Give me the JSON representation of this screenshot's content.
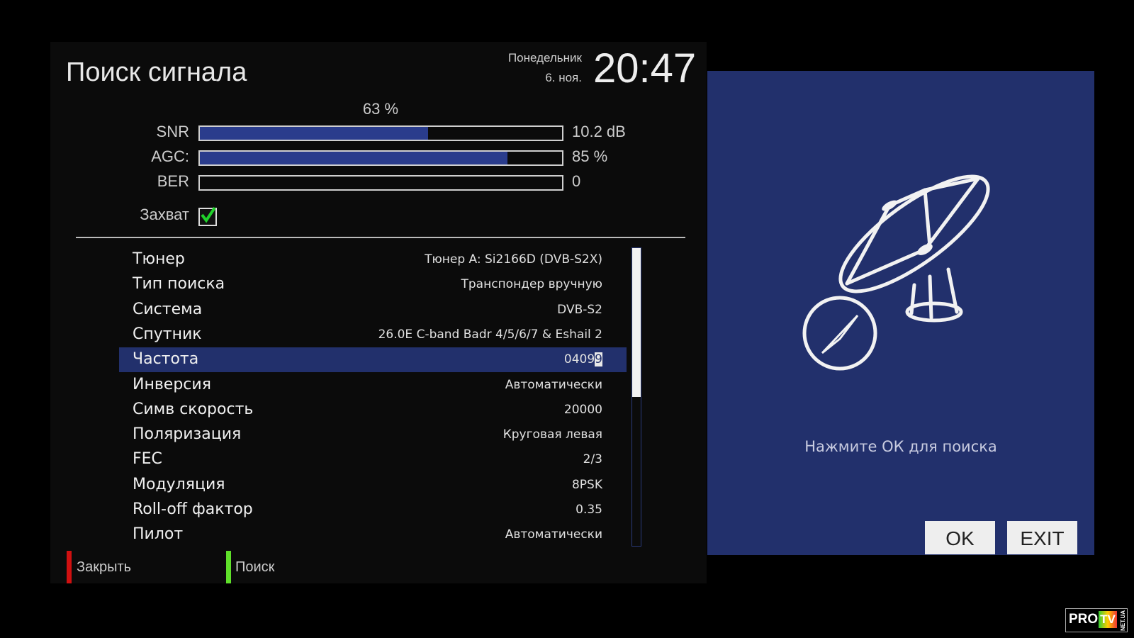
{
  "header": {
    "title": "Поиск сигнала",
    "day": "Понедельник",
    "date": "6. ноя.",
    "time": "20:47"
  },
  "signal": {
    "quality_label": "63 %",
    "meters": [
      {
        "label": "SNR",
        "value": "10.2 dB",
        "fill_percent": 63
      },
      {
        "label": "AGC:",
        "value": "85 %",
        "fill_percent": 85
      },
      {
        "label": "BER",
        "value": "0",
        "fill_percent": 0
      }
    ],
    "lock_label": "Захват",
    "lock_checked": true
  },
  "settings": [
    {
      "label": "Тюнер",
      "value": "Тюнер A: Si2166D (DVB-S2X)"
    },
    {
      "label": "Тип поиска",
      "value": "Транспондер вручную"
    },
    {
      "label": "Система",
      "value": "DVB-S2"
    },
    {
      "label": "Спутник",
      "value": "26.0E C-band Badr 4/5/6/7 & Eshail 2"
    },
    {
      "label": "Частота",
      "value": "0409",
      "cursor_char": "9",
      "selected": true
    },
    {
      "label": "Инверсия",
      "value": "Автоматически"
    },
    {
      "label": "Симв скорость",
      "value": "20000"
    },
    {
      "label": "Поляризация",
      "value": "Круговая левая"
    },
    {
      "label": "FEC",
      "value": "2/3"
    },
    {
      "label": "Модуляция",
      "value": "8PSK"
    },
    {
      "label": "Roll-off фактор",
      "value": "0.35"
    },
    {
      "label": "Пилот",
      "value": "Автоматически"
    }
  ],
  "footer": {
    "red_label": "Закрыть",
    "green_label": "Поиск",
    "red_color": "#d01010",
    "green_color": "#5fe02a"
  },
  "dialog": {
    "icon": "satellite-dish-compass-icon",
    "hint": "Нажмите ОК для поиска",
    "ok_label": "OK",
    "exit_label": "EXIT"
  },
  "watermark": {
    "text": "PROTV",
    "side_text": "NET.UA"
  },
  "colors": {
    "accent": "#22306c",
    "bar_fill": "#2a3c8c"
  }
}
